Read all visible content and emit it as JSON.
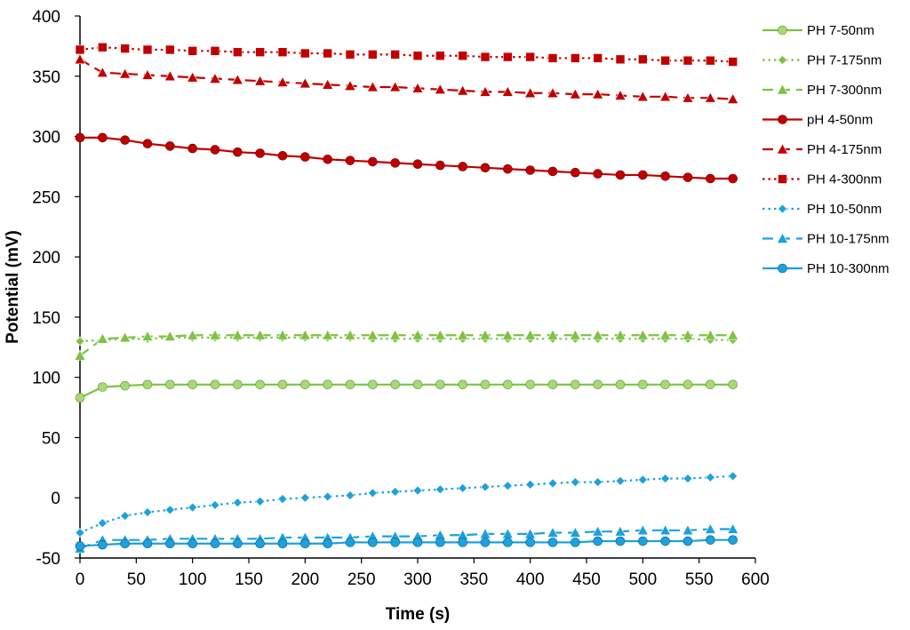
{
  "chart_data": {
    "type": "line",
    "title": "",
    "xlabel": "Time (s)",
    "ylabel": "Potential (mV)",
    "xlim": [
      0,
      600
    ],
    "ylim": [
      -50,
      400
    ],
    "x_ticks": [
      "0",
      "50",
      "100",
      "150",
      "200",
      "250",
      "300",
      "350",
      "400",
      "450",
      "500",
      "550",
      "600"
    ],
    "y_ticks": [
      "-50",
      "0",
      "50",
      "100",
      "150",
      "200",
      "250",
      "300",
      "350",
      "400"
    ],
    "grid": false,
    "legend_position": "right",
    "x": [
      0,
      20,
      40,
      60,
      80,
      100,
      120,
      140,
      160,
      180,
      200,
      220,
      240,
      260,
      280,
      300,
      320,
      340,
      360,
      380,
      400,
      420,
      440,
      460,
      480,
      500,
      520,
      540,
      560,
      580
    ],
    "series": [
      {
        "name": "PH 7-50nm",
        "color": "#7dc242",
        "marker": "circle",
        "dash": "solid",
        "values": [
          83,
          92,
          93,
          94,
          94,
          94,
          94,
          94,
          94,
          94,
          94,
          94,
          94,
          94,
          94,
          94,
          94,
          94,
          94,
          94,
          94,
          94,
          94,
          94,
          94,
          94,
          94,
          94,
          94,
          94
        ]
      },
      {
        "name": "PH 7-175nm",
        "color": "#7dc242",
        "marker": "diamond",
        "dash": "dotted",
        "values": [
          130,
          131,
          132,
          132,
          133,
          133,
          133,
          133,
          133,
          133,
          133,
          133,
          133,
          132,
          132,
          132,
          132,
          132,
          132,
          132,
          132,
          132,
          132,
          132,
          132,
          132,
          132,
          132,
          131,
          131
        ]
      },
      {
        "name": "PH 7-300nm",
        "color": "#7dc242",
        "marker": "triangle",
        "dash": "dashed",
        "values": [
          118,
          132,
          133,
          134,
          134,
          135,
          135,
          135,
          135,
          135,
          135,
          135,
          135,
          135,
          135,
          135,
          135,
          135,
          135,
          135,
          135,
          135,
          135,
          135,
          135,
          135,
          135,
          135,
          135,
          135
        ]
      },
      {
        "name": "pH 4-50nm",
        "color": "#c00000",
        "marker": "circle",
        "dash": "solid",
        "values": [
          299,
          299,
          297,
          294,
          292,
          290,
          289,
          287,
          286,
          284,
          283,
          281,
          280,
          279,
          278,
          277,
          276,
          275,
          274,
          273,
          272,
          271,
          270,
          269,
          268,
          268,
          267,
          266,
          265,
          265
        ]
      },
      {
        "name": "PH 4-175nm",
        "color": "#c00000",
        "marker": "triangle",
        "dash": "dashed",
        "values": [
          364,
          353,
          352,
          351,
          350,
          349,
          348,
          347,
          346,
          345,
          344,
          343,
          342,
          341,
          341,
          340,
          339,
          338,
          337,
          337,
          336,
          336,
          335,
          335,
          334,
          333,
          333,
          332,
          332,
          331
        ]
      },
      {
        "name": "PH 4-300nm",
        "color": "#c00000",
        "marker": "square",
        "dash": "dotted",
        "values": [
          372,
          374,
          373,
          372,
          372,
          371,
          371,
          370,
          370,
          370,
          369,
          369,
          368,
          368,
          368,
          367,
          367,
          367,
          366,
          366,
          366,
          365,
          365,
          365,
          364,
          364,
          363,
          363,
          363,
          362
        ]
      },
      {
        "name": "PH 10-50nm",
        "color": "#1ca1dc",
        "marker": "diamond",
        "dash": "dotted",
        "values": [
          -29,
          -21,
          -15,
          -12,
          -10,
          -8,
          -6,
          -4,
          -3,
          -1,
          0,
          1,
          2,
          4,
          5,
          6,
          7,
          8,
          9,
          10,
          11,
          12,
          13,
          13,
          14,
          15,
          16,
          16,
          17,
          18
        ]
      },
      {
        "name": "PH 10-175nm",
        "color": "#1ca1dc",
        "marker": "triangle",
        "dash": "dashed",
        "values": [
          -42,
          -35,
          -35,
          -35,
          -34,
          -34,
          -34,
          -34,
          -34,
          -33,
          -33,
          -33,
          -33,
          -32,
          -32,
          -32,
          -31,
          -31,
          -30,
          -30,
          -30,
          -29,
          -29,
          -28,
          -28,
          -27,
          -27,
          -27,
          -26,
          -26
        ]
      },
      {
        "name": "PH 10-300nm",
        "color": "#1ca1dc",
        "marker": "circle",
        "dash": "solid",
        "values": [
          -40,
          -39,
          -38,
          -38,
          -38,
          -38,
          -38,
          -38,
          -38,
          -38,
          -38,
          -38,
          -37,
          -37,
          -37,
          -37,
          -37,
          -37,
          -37,
          -37,
          -37,
          -37,
          -37,
          -36,
          -36,
          -36,
          -36,
          -36,
          -35,
          -35
        ]
      }
    ]
  }
}
